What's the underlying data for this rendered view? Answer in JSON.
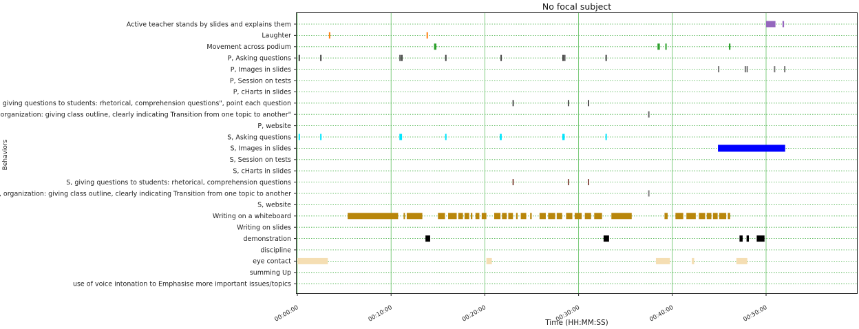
{
  "chart_data": {
    "type": "timeline",
    "title": "No focal subject",
    "xlabel": "Time (HH:MM:SS)",
    "ylabel": "Behaviors",
    "xlim": [
      0,
      3000
    ],
    "grid": true,
    "x_ticks": [
      {
        "value": 0,
        "label": "00:00:00"
      },
      {
        "value": 600,
        "label": "00:10:00"
      },
      {
        "value": 1200,
        "label": "00:20:00"
      },
      {
        "value": 1800,
        "label": "00:30:00"
      },
      {
        "value": 2400,
        "label": "00:40:00"
      },
      {
        "value": 3000,
        "label": "00:50:00"
      }
    ],
    "categories": [
      {
        "name": "Active teacher stands by slides and explains them",
        "color": "#9467bd",
        "thick": true,
        "events": [
          [
            3000,
            3060
          ],
          [
            3105,
            3115
          ]
        ]
      },
      {
        "name": "Laughter",
        "color": "#ff7f0e",
        "thick": true,
        "events": [
          [
            202,
            207
          ],
          [
            827,
            832
          ]
        ]
      },
      {
        "name": "Movement across podium",
        "color": "#2ca02c",
        "thick": true,
        "events": [
          [
            875,
            890
          ],
          [
            2305,
            2320
          ],
          [
            2355,
            2362
          ],
          [
            2762,
            2772
          ]
        ]
      },
      {
        "name": "P, Asking questions",
        "color": "#444444",
        "thick": true,
        "events": [
          [
            8,
            12
          ],
          [
            146,
            152
          ],
          [
            653,
            660
          ],
          [
            665,
            670
          ],
          [
            946,
            951
          ],
          [
            1300,
            1306
          ],
          [
            1696,
            1700
          ],
          [
            1707,
            1711
          ],
          [
            1972,
            1977
          ]
        ]
      },
      {
        "name": "P, Images in slides",
        "color": "#777777",
        "thick": true,
        "events": [
          [
            2692,
            2697
          ],
          [
            2863,
            2867
          ],
          [
            2875,
            2879
          ],
          [
            3050,
            3054
          ],
          [
            3115,
            3119
          ]
        ]
      },
      {
        "name": "P, Session on tests",
        "color": "#777777",
        "thick": true,
        "events": []
      },
      {
        "name": "P, cHarts in slides",
        "color": "#777777",
        "thick": true,
        "events": []
      },
      {
        "name": "P, giving questions to students: rhetorical, comprehension questions\", point each question",
        "color": "#555555",
        "thick": true,
        "events": [
          [
            1377,
            1381
          ],
          [
            1731,
            1735
          ],
          [
            1859,
            1863
          ]
        ]
      },
      {
        "name": "P, organization: giving class outline, clearly indicating Transition from one topic to another\"",
        "color": "#666666",
        "thick": true,
        "events": [
          [
            2245,
            2249
          ]
        ]
      },
      {
        "name": "P, website",
        "color": "#777777",
        "thick": true,
        "events": []
      },
      {
        "name": "S, Asking questions",
        "color": "#00e5ff",
        "thick": true,
        "events": [
          [
            8,
            12
          ],
          [
            146,
            154
          ],
          [
            653,
            670
          ],
          [
            946,
            953
          ],
          [
            1296,
            1308
          ],
          [
            1696,
            1711
          ],
          [
            1972,
            1977
          ]
        ]
      },
      {
        "name": "S, Images in slides",
        "color": "#0000ff",
        "thick": true,
        "events": [
          [
            2692,
            3122
          ]
        ]
      },
      {
        "name": "S, Session on tests",
        "color": "#777777",
        "thick": true,
        "events": []
      },
      {
        "name": "S, cHarts in slides",
        "color": "#777777",
        "thick": true,
        "events": []
      },
      {
        "name": "S, giving questions to students: rhetorical, comprehension questions",
        "color": "#8c564b",
        "thick": true,
        "events": [
          [
            1377,
            1383
          ],
          [
            1731,
            1736
          ],
          [
            1859,
            1864
          ]
        ]
      },
      {
        "name": "S, organization: giving class outline, clearly indicating Transition from one topic to another",
        "color": "#7f7f7f",
        "thick": true,
        "events": [
          [
            2245,
            2250
          ]
        ]
      },
      {
        "name": "S, website",
        "color": "#777777",
        "thick": true,
        "events": []
      },
      {
        "name": "Writing on a whiteboard",
        "color": "#b8860b",
        "thick": true,
        "events": [
          [
            322,
            645
          ],
          [
            680,
            685
          ],
          [
            700,
            800
          ],
          [
            900,
            945
          ],
          [
            965,
            1020
          ],
          [
            1030,
            1060
          ],
          [
            1070,
            1100
          ],
          [
            1110,
            1120
          ],
          [
            1140,
            1165
          ],
          [
            1180,
            1210
          ],
          [
            1260,
            1300
          ],
          [
            1310,
            1340
          ],
          [
            1350,
            1380
          ],
          [
            1400,
            1410
          ],
          [
            1430,
            1465
          ],
          [
            1490,
            1500
          ],
          [
            1550,
            1590
          ],
          [
            1605,
            1650
          ],
          [
            1660,
            1695
          ],
          [
            1720,
            1760
          ],
          [
            1775,
            1820
          ],
          [
            1840,
            1880
          ],
          [
            1900,
            1950
          ],
          [
            2010,
            2140
          ],
          [
            2350,
            2370
          ],
          [
            2420,
            2470
          ],
          [
            2490,
            2550
          ],
          [
            2570,
            2610
          ],
          [
            2620,
            2650
          ],
          [
            2660,
            2690
          ],
          [
            2700,
            2745
          ],
          [
            2755,
            2770
          ]
        ]
      },
      {
        "name": "Writing on slides",
        "color": "#777777",
        "thick": true,
        "events": []
      },
      {
        "name": "demonstration",
        "color": "#000000",
        "thick": true,
        "events": [
          [
            820,
            850
          ],
          [
            1960,
            1995
          ],
          [
            2830,
            2850
          ],
          [
            2875,
            2890
          ],
          [
            2940,
            2990
          ]
        ]
      },
      {
        "name": "discipline",
        "color": "#777777",
        "thick": true,
        "events": []
      },
      {
        "name": "eye contact",
        "color": "#f5deb3",
        "thick": true,
        "events": [
          [
            0,
            195
          ],
          [
            1210,
            1245
          ],
          [
            2295,
            2385
          ],
          [
            2525,
            2540
          ],
          [
            2810,
            2880
          ]
        ]
      },
      {
        "name": "summing Up",
        "color": "#777777",
        "thick": true,
        "events": []
      },
      {
        "name": "use of voice intonation to Emphasise more important issues/topics",
        "color": "#777777",
        "thick": true,
        "events": []
      }
    ]
  }
}
